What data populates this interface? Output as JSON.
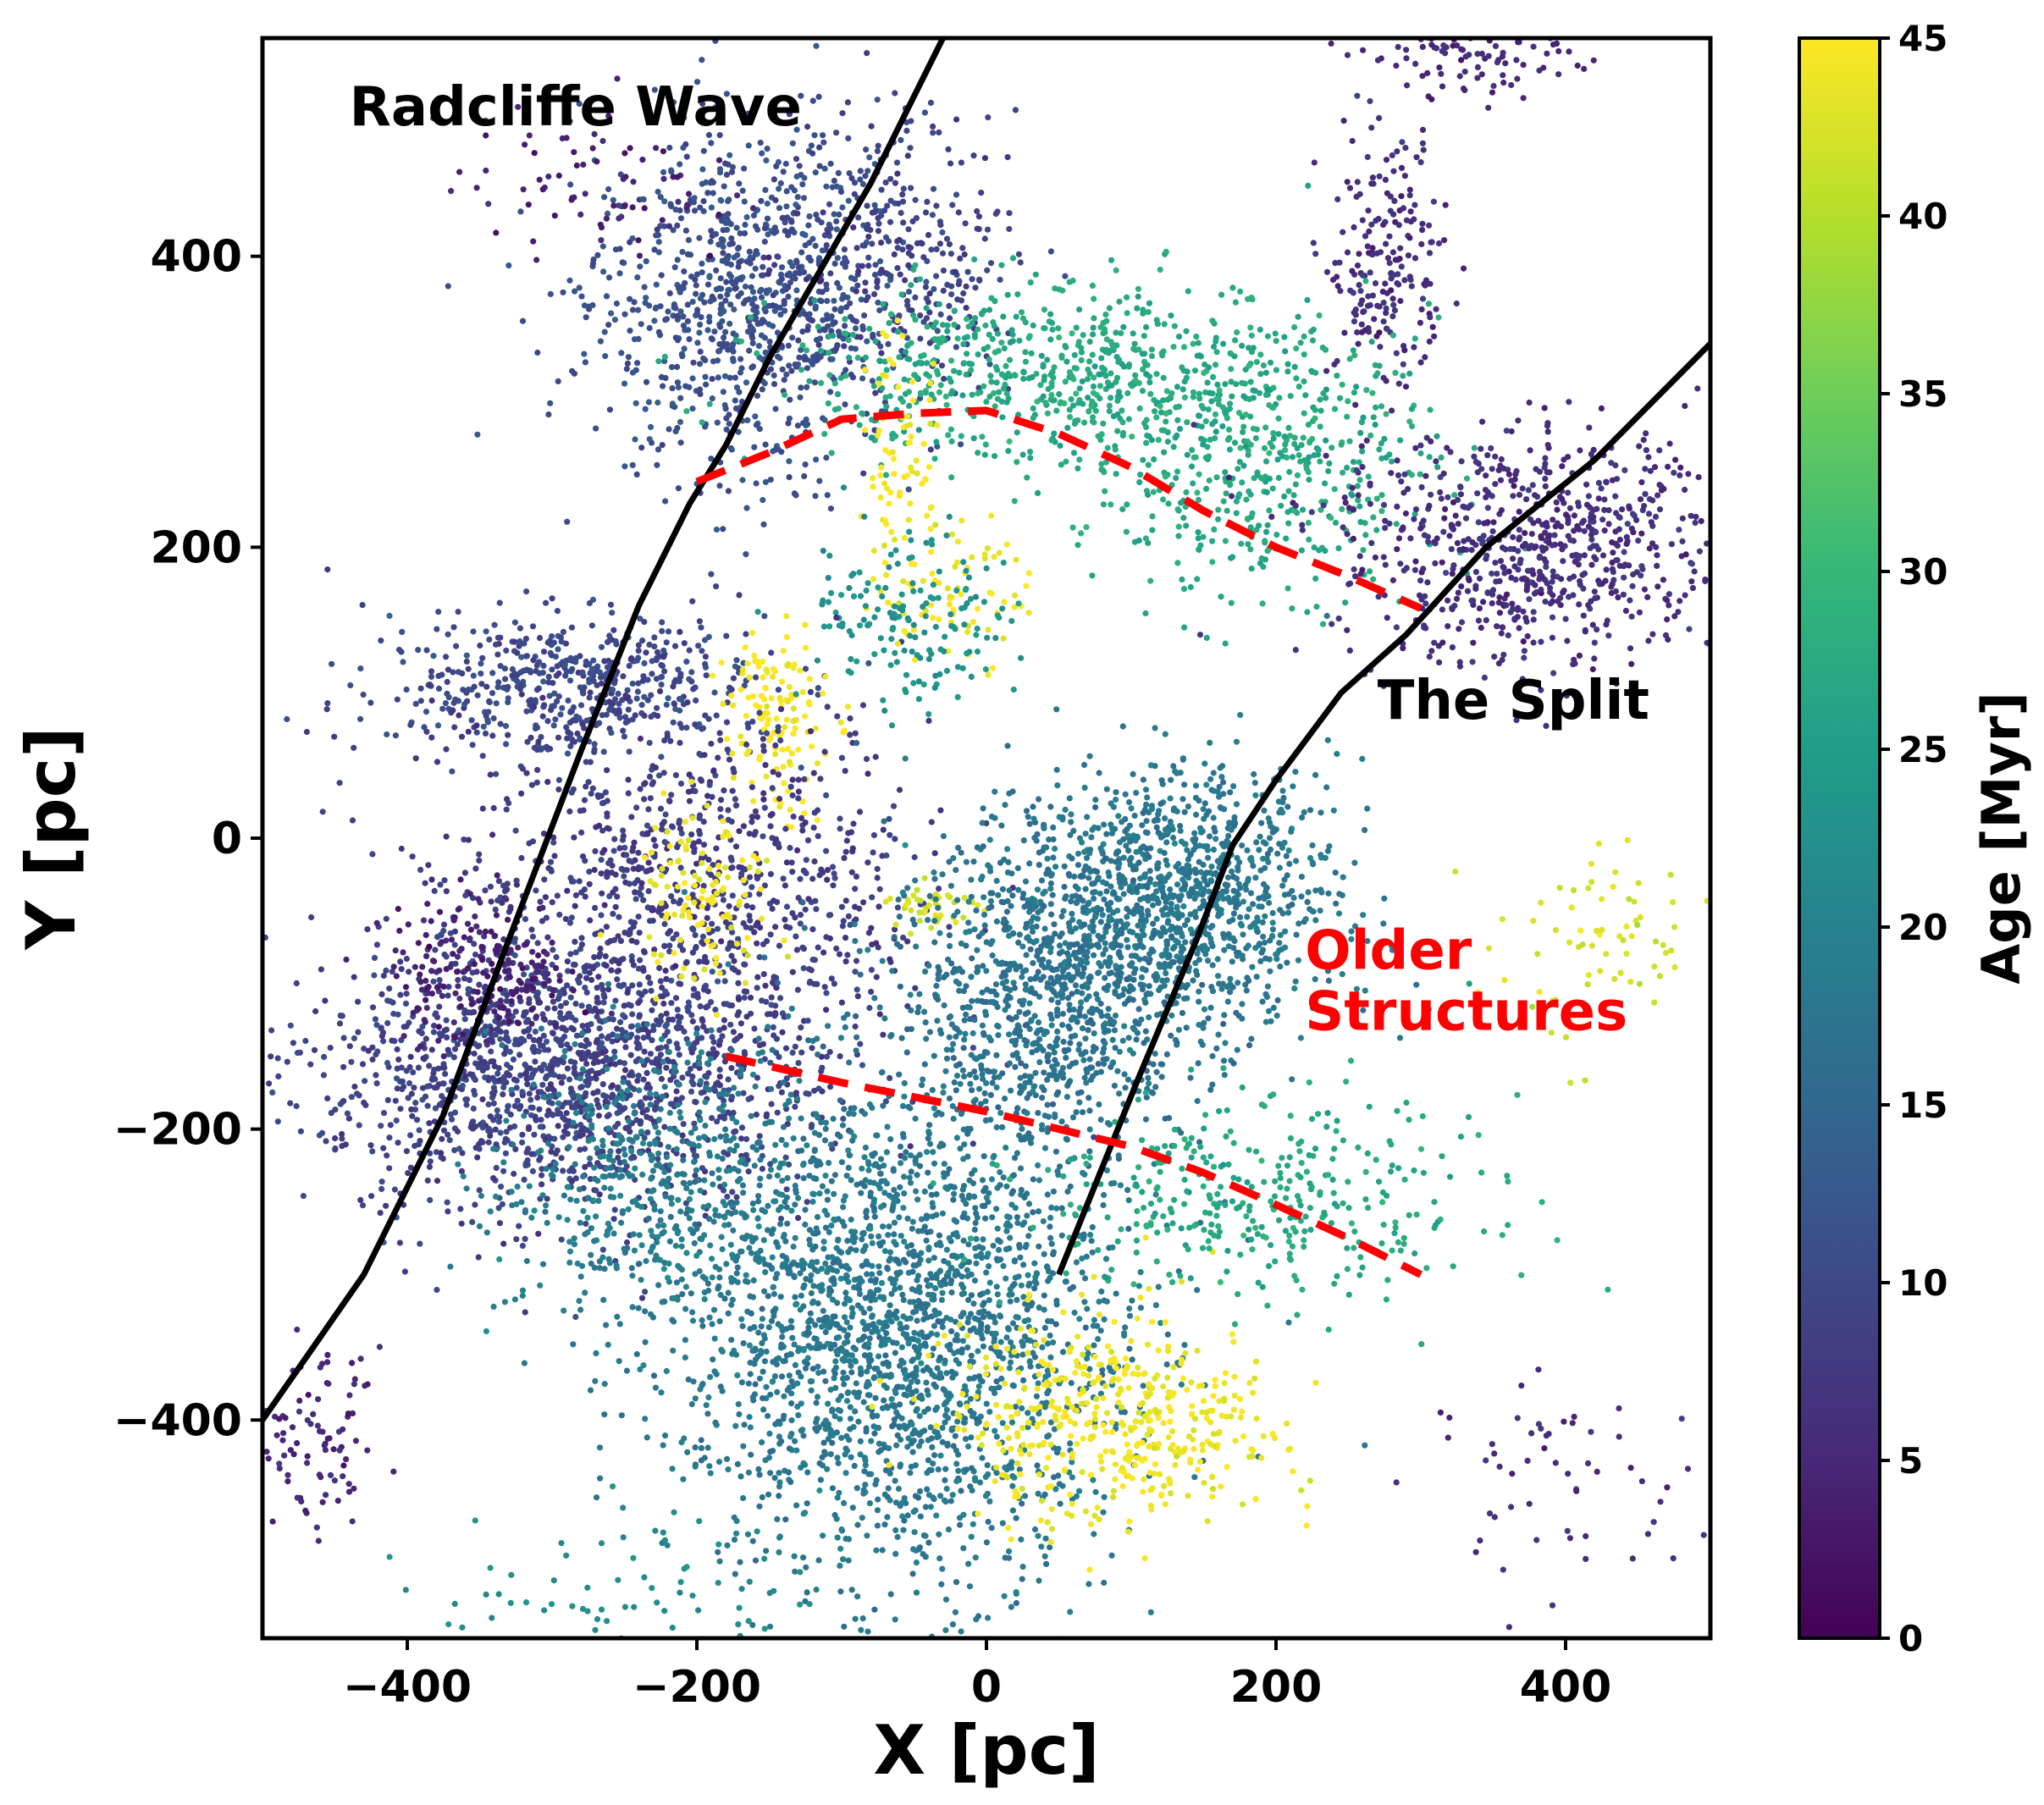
{
  "chart_data": {
    "type": "scatter",
    "title": "",
    "xlabel": "X [pc]",
    "ylabel": "Y [pc]",
    "xlim": [
      -500,
      500
    ],
    "ylim": [
      -550,
      550
    ],
    "x_ticks": [
      -400,
      -200,
      0,
      200,
      400
    ],
    "x_tick_labels": [
      "−400",
      "−200",
      "0",
      "200",
      "400"
    ],
    "y_ticks": [
      -400,
      -200,
      0,
      200,
      400
    ],
    "y_tick_labels": [
      "−400",
      "−200",
      "0",
      "200",
      "400"
    ],
    "grid": false,
    "colorbar": {
      "label": "Age [Myr]",
      "colormap": "viridis",
      "range": [
        0,
        45
      ],
      "ticks": [
        0,
        5,
        10,
        15,
        20,
        25,
        30,
        35,
        40,
        45
      ],
      "tick_labels": [
        "0",
        "5",
        "10",
        "15",
        "20",
        "25",
        "30",
        "35",
        "40",
        "45"
      ]
    },
    "colormap_stops": [
      "#440154",
      "#482878",
      "#3e4989",
      "#31688e",
      "#26828e",
      "#1f9e89",
      "#35b779",
      "#6ece58",
      "#b5de2b",
      "#fde725"
    ],
    "clusters": [
      {
        "name": "upper-left-clump",
        "x": -165,
        "y": 370,
        "sx": 55,
        "sy": 60,
        "age": 11,
        "n": 900
      },
      {
        "name": "upper-mid-clump",
        "x": -60,
        "y": 400,
        "sx": 40,
        "sy": 50,
        "age": 9,
        "n": 300
      },
      {
        "name": "upper-right-streak",
        "x": 275,
        "y": 395,
        "sx": 20,
        "sy": 45,
        "age": 6,
        "n": 200
      },
      {
        "name": "top-right-patch",
        "x": 340,
        "y": 540,
        "sx": 40,
        "sy": 15,
        "age": 5,
        "n": 120
      },
      {
        "name": "top-left-arc",
        "x": -270,
        "y": 450,
        "sx": 50,
        "sy": 30,
        "age": 4,
        "n": 80
      },
      {
        "name": "radcliffe-upper-cloud",
        "x": 50,
        "y": 320,
        "sx": 90,
        "sy": 30,
        "age": 27,
        "n": 650
      },
      {
        "name": "radcliffe-upper-right",
        "x": 190,
        "y": 260,
        "sx": 60,
        "sy": 45,
        "age": 27,
        "n": 450
      },
      {
        "name": "split-upper-structure",
        "x": 380,
        "y": 200,
        "sx": 70,
        "sy": 40,
        "age": 6,
        "n": 750
      },
      {
        "name": "left-horizontal-band",
        "x": -290,
        "y": 105,
        "sx": 70,
        "sy": 25,
        "age": 10,
        "n": 550
      },
      {
        "name": "yellow-cluster-left",
        "x": -145,
        "y": 80,
        "sx": 18,
        "sy": 30,
        "age": 45,
        "n": 130
      },
      {
        "name": "yellow-cluster-mid",
        "x": -15,
        "y": 170,
        "sx": 20,
        "sy": 25,
        "age": 44,
        "n": 60
      },
      {
        "name": "yellow-streak-upper",
        "x": -60,
        "y": 250,
        "sx": 15,
        "sy": 55,
        "age": 45,
        "n": 90
      },
      {
        "name": "teal-mid-patch",
        "x": -55,
        "y": 150,
        "sx": 35,
        "sy": 30,
        "age": 23,
        "n": 160
      },
      {
        "name": "big-left-purple",
        "x": -290,
        "y": -160,
        "sx": 85,
        "sy": 50,
        "age": 9,
        "n": 1600
      },
      {
        "name": "left-purple-upper",
        "x": -200,
        "y": -30,
        "sx": 80,
        "sy": 55,
        "age": 8,
        "n": 800
      },
      {
        "name": "left-purple-edge",
        "x": -350,
        "y": -90,
        "sx": 30,
        "sy": 25,
        "age": 4,
        "n": 200
      },
      {
        "name": "yellow-inside-purple",
        "x": -195,
        "y": -40,
        "sx": 25,
        "sy": 30,
        "age": 44,
        "n": 110
      },
      {
        "name": "lime-small",
        "x": -40,
        "y": -50,
        "sx": 15,
        "sy": 10,
        "age": 42,
        "n": 40
      },
      {
        "name": "teal-right-clump",
        "x": 130,
        "y": -40,
        "sx": 55,
        "sy": 45,
        "age": 18,
        "n": 1100
      },
      {
        "name": "teal-mid-clump",
        "x": 40,
        "y": -110,
        "sx": 55,
        "sy": 55,
        "age": 17,
        "n": 900
      },
      {
        "name": "bottom-teal-big",
        "x": -60,
        "y": -340,
        "sx": 75,
        "sy": 85,
        "age": 18,
        "n": 2200
      },
      {
        "name": "bottom-teal-left",
        "x": -230,
        "y": -240,
        "sx": 55,
        "sy": 50,
        "age": 19,
        "n": 500
      },
      {
        "name": "bottom-yellow-cloud",
        "x": 90,
        "y": -400,
        "sx": 55,
        "sy": 35,
        "age": 44,
        "n": 450
      },
      {
        "name": "green-lower-right",
        "x": 190,
        "y": -250,
        "sx": 75,
        "sy": 35,
        "age": 27,
        "n": 350
      },
      {
        "name": "lime-right-scatter",
        "x": 420,
        "y": -70,
        "sx": 40,
        "sy": 35,
        "age": 42,
        "n": 70
      },
      {
        "name": "bottom-left-purple",
        "x": -470,
        "y": -415,
        "sx": 25,
        "sy": 30,
        "age": 5,
        "n": 100
      },
      {
        "name": "bottom-right-scatter",
        "x": 410,
        "y": -440,
        "sx": 55,
        "sy": 40,
        "age": 6,
        "n": 60
      },
      {
        "name": "bottom-left-teal-arc",
        "x": -250,
        "y": -520,
        "sx": 70,
        "sy": 30,
        "age": 22,
        "n": 90
      }
    ],
    "lines": [
      {
        "name": "radcliffe-wave-line",
        "style": "solid",
        "color": "#000000",
        "x": [
          -500,
          -430,
          -375,
          -330,
          -280,
          -240,
          -205,
          -180,
          -150,
          -115,
          -80,
          -50,
          -30
        ],
        "y": [
          -400,
          -300,
          -190,
          -70,
          60,
          160,
          230,
          270,
          330,
          390,
          450,
          510,
          550
        ]
      },
      {
        "name": "split-line",
        "style": "solid",
        "color": "#000000",
        "x": [
          50,
          105,
          145,
          170,
          200,
          245,
          290,
          345,
          420,
          500
        ],
        "y": [
          -300,
          -165,
          -70,
          -5,
          40,
          100,
          140,
          200,
          260,
          340
        ]
      },
      {
        "name": "upper-red-dashed",
        "style": "dashed",
        "color": "#ff0000",
        "x": [
          -200,
          -150,
          -100,
          -50,
          0,
          50,
          100,
          150,
          200,
          250,
          300
        ],
        "y": [
          245,
          265,
          288,
          292,
          294,
          278,
          255,
          225,
          200,
          180,
          158
        ]
      },
      {
        "name": "lower-red-dashed",
        "style": "dashed",
        "color": "#ff0000",
        "x": [
          -180,
          -100,
          -50,
          0,
          50,
          100,
          150,
          200,
          250,
          300
        ],
        "y": [
          -150,
          -168,
          -178,
          -188,
          -200,
          -212,
          -230,
          -252,
          -275,
          -300
        ]
      }
    ],
    "annotations": [
      {
        "name": "radcliffe-wave-label",
        "text": "Radcliffe Wave",
        "x": -440,
        "y": 490,
        "color": "#000000"
      },
      {
        "name": "the-split-label",
        "text": "The Split",
        "x": 270,
        "y": 82,
        "color": "#000000"
      },
      {
        "name": "older-structures-label",
        "text": "Older Structures",
        "lines": [
          "Older",
          "Structures"
        ],
        "x": 220,
        "y": -90,
        "color": "#ff0000"
      }
    ]
  }
}
